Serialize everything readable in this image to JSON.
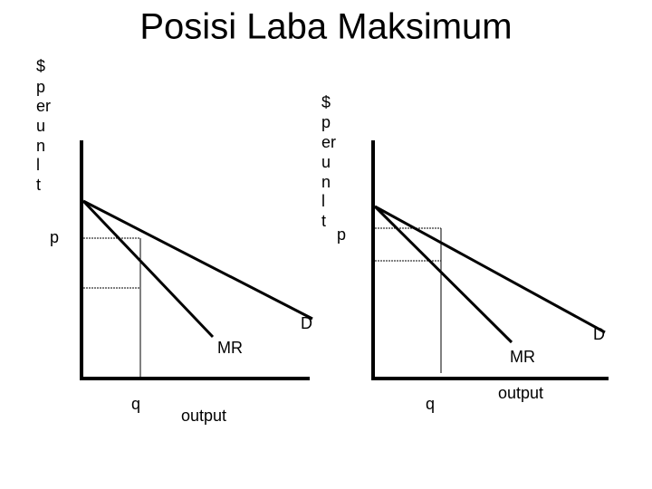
{
  "title": "Posisi Laba Maksimum",
  "panels": [
    {
      "y_label": [
        "$",
        "p",
        "er",
        "u",
        "n",
        "l",
        "t"
      ],
      "price_label": "p",
      "quantity_label": "q",
      "x_label": "output",
      "demand_label": "D",
      "mr_label": "MR"
    },
    {
      "y_label": [
        "$",
        "p",
        "er",
        "u",
        "n",
        "l",
        "t"
      ],
      "price_label": "p",
      "quantity_label": "q",
      "x_label": "output",
      "demand_label": "D",
      "mr_label": "MR"
    }
  ]
}
